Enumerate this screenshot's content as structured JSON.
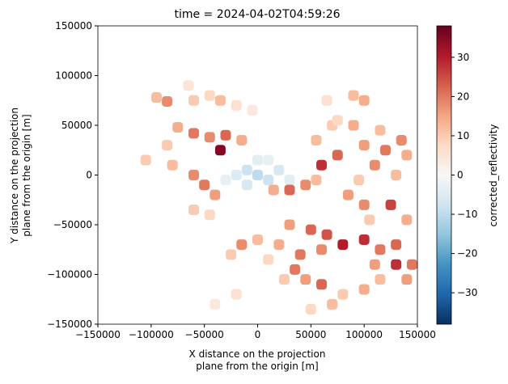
{
  "chart_data": {
    "type": "heatmap",
    "title": "time = 2024-04-02T04:59:26",
    "xlabel": [
      "X distance on the projection",
      "plane from the origin [m]"
    ],
    "ylabel": [
      "Y distance on the projection",
      "plane from the origin [m]"
    ],
    "colorbar_label": "corrected_reflectivity",
    "colormap": "RdBu_r",
    "xlim": [
      -150000,
      150000
    ],
    "ylim": [
      -150000,
      150000
    ],
    "clim": [
      -38,
      38
    ],
    "xticks": [
      {
        "value": -150000,
        "label": "−150000"
      },
      {
        "value": -100000,
        "label": "−100000"
      },
      {
        "value": -50000,
        "label": "−50000"
      },
      0,
      50000,
      100000,
      150000
    ],
    "yticks": [
      {
        "value": -150000,
        "label": "−150000"
      },
      {
        "value": -100000,
        "label": "−100000"
      },
      {
        "value": -50000,
        "label": "−50000"
      },
      0,
      50000,
      100000,
      150000
    ],
    "cticks": [
      {
        "value": -30,
        "label": "−30"
      },
      {
        "value": -20,
        "label": "−20"
      },
      {
        "value": -10,
        "label": "−10"
      },
      0,
      10,
      20,
      30
    ],
    "x": [
      -20000,
      -10000,
      0,
      10000,
      20000,
      0,
      -10000,
      10000,
      30000,
      -30000,
      -95000,
      -85000,
      -60000,
      -45000,
      -35000,
      -65000,
      -20000,
      -5000,
      -75000,
      -60000,
      -45000,
      -30000,
      -15000,
      -85000,
      -35000,
      -105000,
      -80000,
      -60000,
      -50000,
      -40000,
      -60000,
      -45000,
      15000,
      30000,
      45000,
      55000,
      60000,
      75000,
      55000,
      70000,
      90000,
      100000,
      115000,
      120000,
      135000,
      140000,
      110000,
      130000,
      95000,
      85000,
      100000,
      125000,
      140000,
      105000,
      90000,
      100000,
      65000,
      75000,
      30000,
      50000,
      65000,
      80000,
      100000,
      115000,
      130000,
      130000,
      110000,
      145000,
      60000,
      40000,
      20000,
      0,
      -15000,
      -25000,
      10000,
      35000,
      45000,
      60000,
      80000,
      100000,
      115000,
      140000,
      70000,
      50000,
      -20000,
      -40000,
      25000
    ],
    "y": [
      0,
      5000,
      0,
      -5000,
      5000,
      15000,
      -10000,
      15000,
      -5000,
      -5000,
      78000,
      74000,
      75000,
      80000,
      75000,
      90000,
      70000,
      65000,
      48000,
      42000,
      38000,
      40000,
      35000,
      30000,
      25000,
      15000,
      10000,
      0,
      -10000,
      -20000,
      -35000,
      -40000,
      -15000,
      -15000,
      -10000,
      -5000,
      10000,
      20000,
      35000,
      50000,
      50000,
      30000,
      45000,
      25000,
      35000,
      20000,
      10000,
      0,
      -5000,
      -20000,
      -30000,
      -30000,
      -45000,
      -45000,
      80000,
      75000,
      75000,
      55000,
      -50000,
      -55000,
      -60000,
      -70000,
      -65000,
      -75000,
      -70000,
      -90000,
      -90000,
      -90000,
      -75000,
      -80000,
      -70000,
      -65000,
      -70000,
      -80000,
      -85000,
      -95000,
      -105000,
      -110000,
      -120000,
      -115000,
      -105000,
      -105000,
      -130000,
      -135000,
      -120000,
      -130000,
      -105000
    ],
    "values": [
      -5,
      -8,
      -10,
      -8,
      -6,
      -4,
      -6,
      -3,
      -4,
      -3,
      12,
      18,
      10,
      8,
      12,
      5,
      6,
      4,
      14,
      20,
      18,
      22,
      14,
      10,
      35,
      10,
      12,
      18,
      20,
      16,
      10,
      8,
      14,
      22,
      18,
      12,
      28,
      22,
      12,
      10,
      14,
      16,
      12,
      20,
      18,
      14,
      18,
      12,
      10,
      16,
      18,
      26,
      14,
      10,
      12,
      14,
      6,
      8,
      16,
      22,
      24,
      30,
      28,
      20,
      22,
      28,
      16,
      20,
      18,
      20,
      14,
      12,
      18,
      10,
      8,
      20,
      16,
      22,
      10,
      14,
      12,
      16,
      12,
      8,
      6,
      4,
      10
    ]
  }
}
